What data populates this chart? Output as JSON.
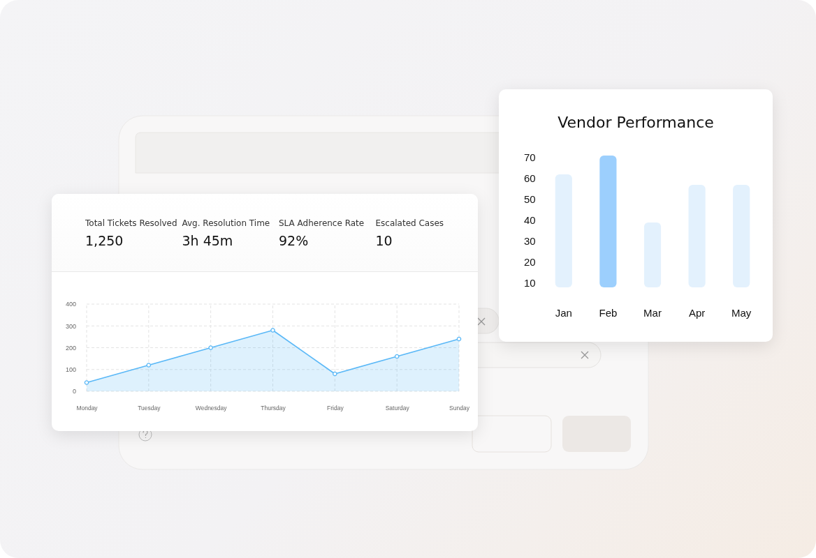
{
  "chart_data": [
    {
      "type": "bar",
      "title": "Vendor Performance",
      "categories": [
        "Jan",
        "Feb",
        "Mar",
        "Apr",
        "May"
      ],
      "values": [
        62,
        71,
        39,
        57,
        57
      ],
      "colors": [
        "#e3f1fd",
        "#9ccffd",
        "#e3f1fd",
        "#e3f1fd",
        "#e3f1fd"
      ],
      "ylim": [
        8,
        72
      ],
      "yticks": [
        10,
        20,
        30,
        40,
        50,
        60,
        70
      ],
      "grid": false
    },
    {
      "type": "other",
      "annotations": [
        "Total Tickets Resolved",
        "1,250",
        "Avg. Resolution Time",
        "3h 45m",
        "SLA Adherence Rate",
        "92%",
        "Escalated Cases",
        "10"
      ]
    },
    {
      "type": "area",
      "categories": [
        "Monday",
        "Tuesday",
        "Wednesday",
        "Thursday",
        "Friday",
        "Saturday",
        "Sunday"
      ],
      "series": [
        {
          "color": "#5ab8f7",
          "values": [
            40,
            120,
            200,
            280,
            80,
            160,
            240
          ]
        }
      ],
      "ylim": [
        0,
        400
      ],
      "yticks": [
        0,
        100,
        200,
        300,
        400
      ],
      "grid": true,
      "marker": "circle",
      "line_style": "solid"
    }
  ]
}
